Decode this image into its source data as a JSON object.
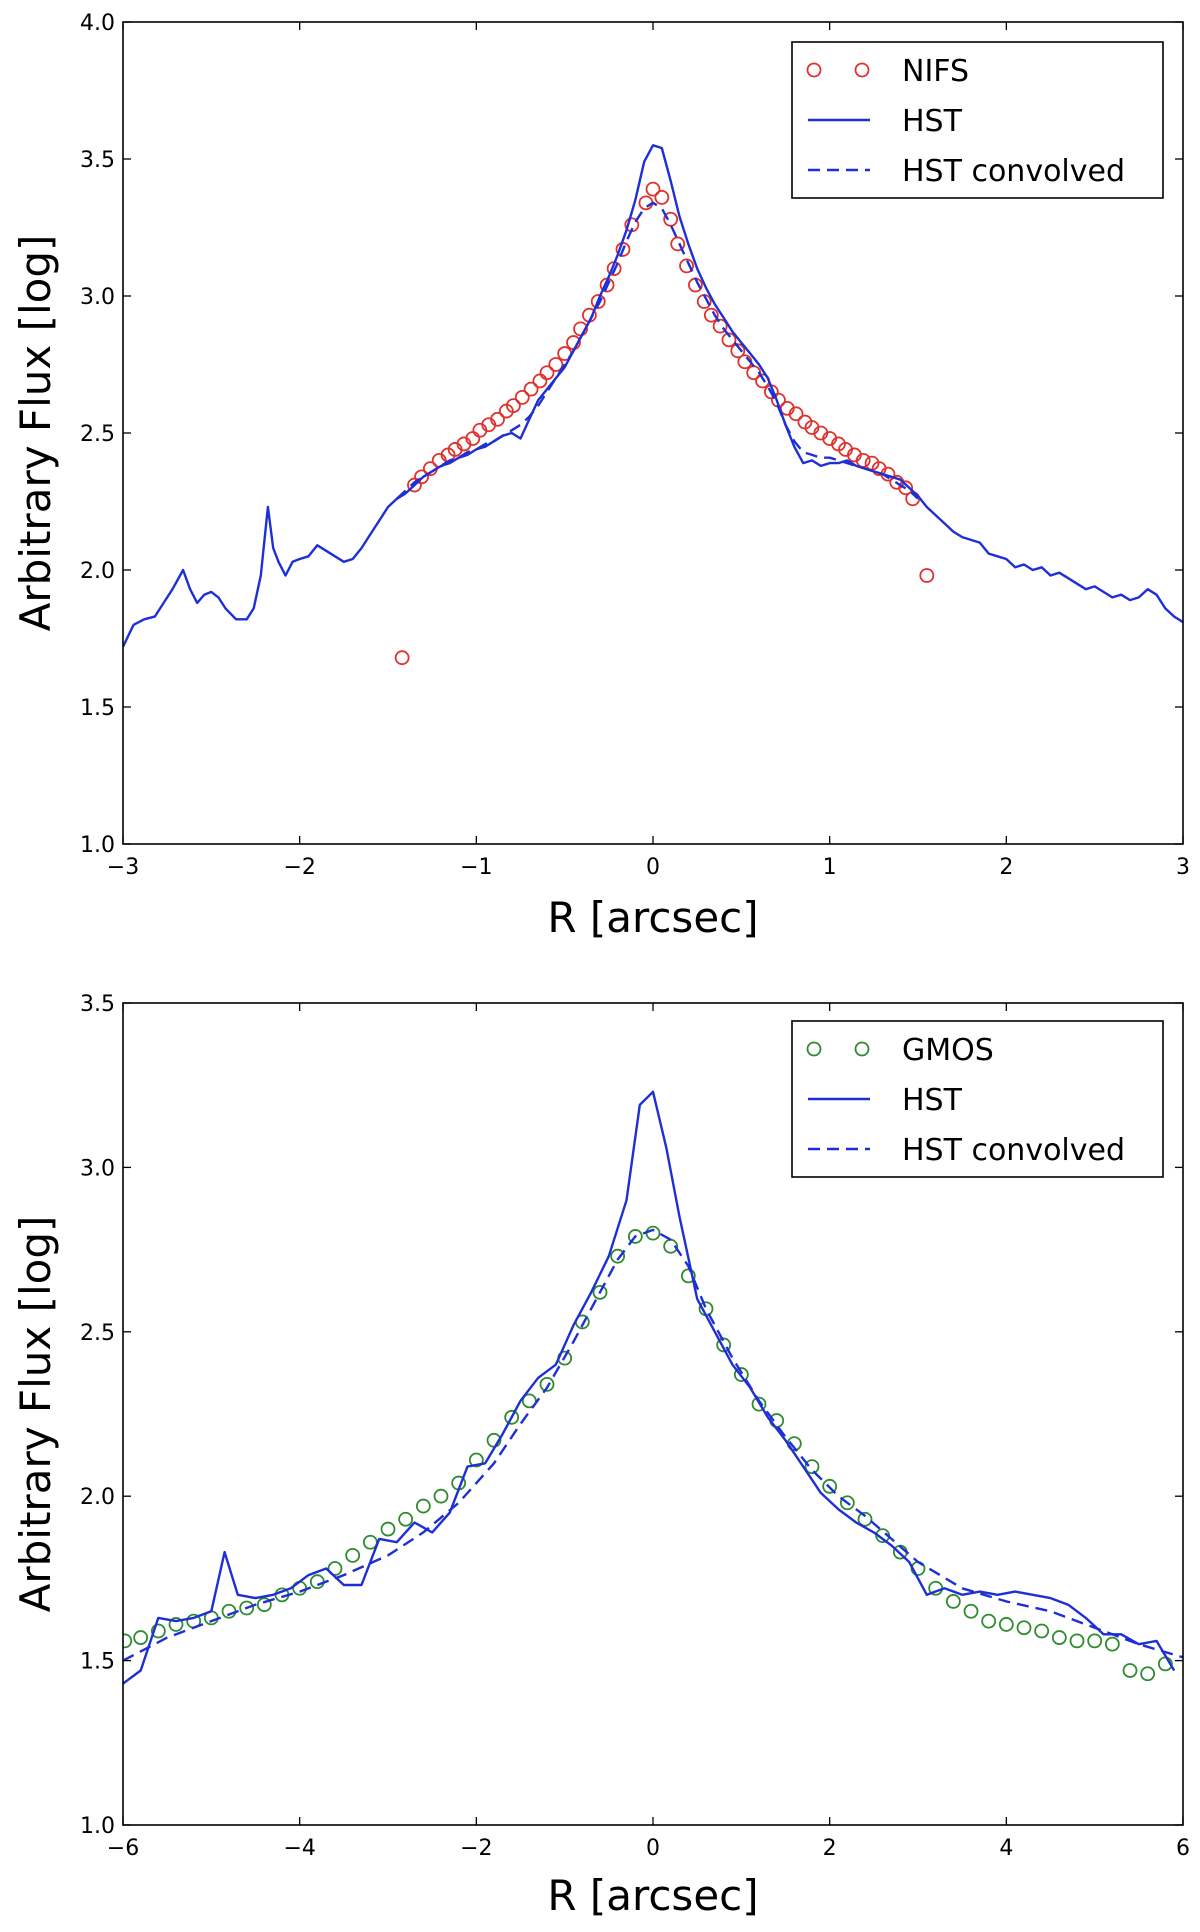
{
  "chart_data": [
    {
      "type": "line",
      "xlabel": "R [arcsec]",
      "ylabel": "Arbitrary Flux [log]",
      "xlim": [
        -3,
        3
      ],
      "ylim": [
        1.0,
        4.0
      ],
      "xticks": [
        -3,
        -2,
        -1,
        0,
        1,
        2,
        3
      ],
      "yticks": [
        1.0,
        1.5,
        2.0,
        2.5,
        3.0,
        3.5,
        4.0
      ],
      "xtick_labels": [
        "−3",
        "−2",
        "−1",
        "0",
        "1",
        "2",
        "3"
      ],
      "ytick_labels": [
        "1.0",
        "1.5",
        "2.0",
        "2.5",
        "3.0",
        "3.5",
        "4.0"
      ],
      "legend": "top-right",
      "series": [
        {
          "name": "NIFS",
          "style": "circles",
          "color": "#e0312c",
          "x": [
            -1.42,
            -1.35,
            -1.31,
            -1.26,
            -1.21,
            -1.16,
            -1.12,
            -1.07,
            -1.02,
            -0.98,
            -0.93,
            -0.88,
            -0.83,
            -0.79,
            -0.74,
            -0.69,
            -0.64,
            -0.6,
            -0.55,
            -0.5,
            -0.45,
            -0.41,
            -0.36,
            -0.31,
            -0.26,
            -0.22,
            -0.17,
            -0.12,
            -0.04,
            0.0,
            0.05,
            0.1,
            0.14,
            0.19,
            0.24,
            0.29,
            0.33,
            0.38,
            0.43,
            0.48,
            0.52,
            0.57,
            0.62,
            0.67,
            0.71,
            0.76,
            0.81,
            0.86,
            0.9,
            0.95,
            1.0,
            1.05,
            1.09,
            1.14,
            1.19,
            1.24,
            1.28,
            1.33,
            1.38,
            1.43,
            1.47,
            1.55
          ],
          "y": [
            1.68,
            2.31,
            2.34,
            2.37,
            2.4,
            2.42,
            2.44,
            2.46,
            2.48,
            2.51,
            2.53,
            2.55,
            2.58,
            2.6,
            2.63,
            2.66,
            2.69,
            2.72,
            2.75,
            2.79,
            2.83,
            2.88,
            2.93,
            2.98,
            3.04,
            3.1,
            3.17,
            3.26,
            3.34,
            3.39,
            3.36,
            3.28,
            3.19,
            3.11,
            3.04,
            2.98,
            2.93,
            2.89,
            2.84,
            2.8,
            2.76,
            2.72,
            2.69,
            2.65,
            2.62,
            2.59,
            2.57,
            2.54,
            2.52,
            2.5,
            2.48,
            2.46,
            2.44,
            2.42,
            2.4,
            2.39,
            2.37,
            2.35,
            2.32,
            2.3,
            2.26,
            1.98
          ]
        },
        {
          "name": "HST",
          "style": "solid",
          "color": "#1f2fd6",
          "x": [
            -3.0,
            -2.94,
            -2.88,
            -2.82,
            -2.76,
            -2.72,
            -2.66,
            -2.62,
            -2.58,
            -2.54,
            -2.5,
            -2.46,
            -2.42,
            -2.36,
            -2.3,
            -2.26,
            -2.22,
            -2.18,
            -2.15,
            -2.12,
            -2.08,
            -2.04,
            -2.0,
            -1.95,
            -1.9,
            -1.85,
            -1.8,
            -1.75,
            -1.7,
            -1.65,
            -1.6,
            -1.55,
            -1.5,
            -1.45,
            -1.4,
            -1.35,
            -1.3,
            -1.25,
            -1.2,
            -1.15,
            -1.1,
            -1.05,
            -1.0,
            -0.95,
            -0.9,
            -0.85,
            -0.8,
            -0.75,
            -0.7,
            -0.65,
            -0.6,
            -0.55,
            -0.5,
            -0.45,
            -0.4,
            -0.35,
            -0.3,
            -0.25,
            -0.2,
            -0.15,
            -0.1,
            -0.05,
            0.0,
            0.05,
            0.1,
            0.15,
            0.2,
            0.25,
            0.3,
            0.35,
            0.4,
            0.45,
            0.5,
            0.55,
            0.6,
            0.65,
            0.7,
            0.75,
            0.8,
            0.85,
            0.9,
            0.95,
            1.0,
            1.05,
            1.1,
            1.15,
            1.2,
            1.25,
            1.3,
            1.35,
            1.4,
            1.45,
            1.5,
            1.55,
            1.6,
            1.65,
            1.7,
            1.75,
            1.8,
            1.85,
            1.9,
            1.95,
            2.0,
            2.05,
            2.1,
            2.15,
            2.2,
            2.25,
            2.3,
            2.35,
            2.4,
            2.45,
            2.5,
            2.55,
            2.6,
            2.65,
            2.7,
            2.75,
            2.8,
            2.85,
            2.9,
            2.95,
            3.0
          ],
          "y": [
            1.72,
            1.8,
            1.82,
            1.83,
            1.89,
            1.93,
            2.0,
            1.93,
            1.88,
            1.91,
            1.92,
            1.9,
            1.86,
            1.82,
            1.82,
            1.86,
            1.98,
            2.23,
            2.08,
            2.03,
            1.98,
            2.03,
            2.04,
            2.05,
            2.09,
            2.07,
            2.05,
            2.03,
            2.04,
            2.08,
            2.13,
            2.18,
            2.23,
            2.26,
            2.28,
            2.31,
            2.34,
            2.36,
            2.38,
            2.39,
            2.41,
            2.42,
            2.44,
            2.45,
            2.47,
            2.49,
            2.5,
            2.48,
            2.55,
            2.62,
            2.66,
            2.7,
            2.74,
            2.8,
            2.86,
            2.92,
            3.0,
            3.07,
            3.15,
            3.24,
            3.35,
            3.49,
            3.55,
            3.54,
            3.42,
            3.29,
            3.19,
            3.1,
            3.03,
            2.97,
            2.92,
            2.87,
            2.83,
            2.79,
            2.75,
            2.7,
            2.62,
            2.53,
            2.45,
            2.39,
            2.4,
            2.38,
            2.39,
            2.39,
            2.4,
            2.38,
            2.37,
            2.36,
            2.35,
            2.34,
            2.33,
            2.3,
            2.27,
            2.23,
            2.2,
            2.17,
            2.14,
            2.12,
            2.11,
            2.1,
            2.06,
            2.05,
            2.04,
            2.01,
            2.02,
            2.0,
            2.01,
            1.98,
            1.99,
            1.97,
            1.95,
            1.93,
            1.94,
            1.92,
            1.9,
            1.91,
            1.89,
            1.9,
            1.93,
            1.91,
            1.86,
            1.83,
            1.81
          ]
        },
        {
          "name": "HST convolved",
          "style": "dashed",
          "color": "#1f2fd6",
          "x": [
            -1.45,
            -1.4,
            -1.35,
            -1.3,
            -1.25,
            -1.2,
            -1.15,
            -1.1,
            -1.05,
            -1.0,
            -0.95,
            -0.9,
            -0.85,
            -0.8,
            -0.75,
            -0.7,
            -0.65,
            -0.6,
            -0.55,
            -0.5,
            -0.45,
            -0.4,
            -0.35,
            -0.3,
            -0.25,
            -0.2,
            -0.15,
            -0.1,
            -0.05,
            0.0,
            0.05,
            0.1,
            0.15,
            0.2,
            0.25,
            0.3,
            0.35,
            0.4,
            0.45,
            0.5,
            0.55,
            0.6,
            0.65,
            0.7,
            0.75,
            0.8,
            0.85,
            0.9,
            0.95,
            1.0,
            1.05,
            1.1,
            1.15,
            1.2,
            1.25,
            1.3,
            1.35,
            1.4,
            1.45,
            1.5
          ],
          "y": [
            2.26,
            2.29,
            2.32,
            2.34,
            2.36,
            2.38,
            2.4,
            2.41,
            2.43,
            2.44,
            2.46,
            2.47,
            2.49,
            2.51,
            2.53,
            2.56,
            2.6,
            2.65,
            2.7,
            2.75,
            2.8,
            2.86,
            2.92,
            2.98,
            3.05,
            3.12,
            3.2,
            3.27,
            3.32,
            3.34,
            3.32,
            3.26,
            3.19,
            3.12,
            3.05,
            2.99,
            2.93,
            2.88,
            2.84,
            2.8,
            2.76,
            2.72,
            2.67,
            2.61,
            2.53,
            2.47,
            2.43,
            2.42,
            2.41,
            2.41,
            2.4,
            2.39,
            2.38,
            2.37,
            2.36,
            2.35,
            2.33,
            2.31,
            2.29,
            2.26
          ]
        }
      ]
    },
    {
      "type": "line",
      "xlabel": "R [arcsec]",
      "ylabel": "Arbitrary Flux [log]",
      "xlim": [
        -6,
        6
      ],
      "ylim": [
        1.0,
        3.5
      ],
      "xticks": [
        -6,
        -4,
        -2,
        0,
        2,
        4,
        6
      ],
      "yticks": [
        1.0,
        1.5,
        2.0,
        2.5,
        3.0,
        3.5
      ],
      "xtick_labels": [
        "−6",
        "−4",
        "−2",
        "0",
        "2",
        "4",
        "6"
      ],
      "ytick_labels": [
        "1.0",
        "1.5",
        "2.0",
        "2.5",
        "3.0",
        "3.5"
      ],
      "legend": "top-right",
      "series": [
        {
          "name": "GMOS",
          "style": "circles",
          "color": "#2e8b2e",
          "x": [
            -5.98,
            -5.8,
            -5.6,
            -5.4,
            -5.2,
            -5.0,
            -4.8,
            -4.6,
            -4.4,
            -4.2,
            -4.0,
            -3.8,
            -3.6,
            -3.4,
            -3.2,
            -3.0,
            -2.8,
            -2.6,
            -2.4,
            -2.2,
            -2.0,
            -1.8,
            -1.6,
            -1.4,
            -1.2,
            -1.0,
            -0.8,
            -0.6,
            -0.4,
            -0.2,
            0.0,
            0.2,
            0.4,
            0.6,
            0.8,
            1.0,
            1.2,
            1.4,
            1.6,
            1.8,
            2.0,
            2.2,
            2.4,
            2.6,
            2.8,
            3.0,
            3.2,
            3.4,
            3.6,
            3.8,
            4.0,
            4.2,
            4.4,
            4.6,
            4.8,
            5.0,
            5.2,
            5.4,
            5.6,
            5.8
          ],
          "y": [
            1.56,
            1.57,
            1.59,
            1.61,
            1.62,
            1.63,
            1.65,
            1.66,
            1.67,
            1.7,
            1.72,
            1.74,
            1.78,
            1.82,
            1.86,
            1.9,
            1.93,
            1.97,
            2.0,
            2.04,
            2.11,
            2.17,
            2.24,
            2.29,
            2.34,
            2.42,
            2.53,
            2.62,
            2.73,
            2.79,
            2.8,
            2.76,
            2.67,
            2.57,
            2.46,
            2.37,
            2.28,
            2.23,
            2.16,
            2.09,
            2.03,
            1.98,
            1.93,
            1.88,
            1.83,
            1.78,
            1.72,
            1.68,
            1.65,
            1.62,
            1.61,
            1.6,
            1.59,
            1.57,
            1.56,
            1.56,
            1.55,
            1.47,
            1.46,
            1.49
          ]
        },
        {
          "name": "HST",
          "style": "solid",
          "color": "#1f2fd6",
          "x": [
            -6.0,
            -5.8,
            -5.6,
            -5.4,
            -5.2,
            -5.0,
            -4.85,
            -4.7,
            -4.5,
            -4.3,
            -4.1,
            -3.9,
            -3.7,
            -3.5,
            -3.3,
            -3.1,
            -2.9,
            -2.7,
            -2.5,
            -2.3,
            -2.1,
            -1.9,
            -1.7,
            -1.5,
            -1.3,
            -1.1,
            -0.9,
            -0.7,
            -0.5,
            -0.3,
            -0.15,
            0.0,
            0.15,
            0.3,
            0.5,
            0.7,
            0.9,
            1.1,
            1.3,
            1.5,
            1.7,
            1.9,
            2.1,
            2.3,
            2.5,
            2.7,
            2.9,
            3.1,
            3.3,
            3.5,
            3.7,
            3.9,
            4.1,
            4.3,
            4.5,
            4.7,
            4.9,
            5.1,
            5.3,
            5.5,
            5.7,
            5.9
          ],
          "y": [
            1.43,
            1.47,
            1.63,
            1.62,
            1.63,
            1.65,
            1.83,
            1.7,
            1.69,
            1.7,
            1.72,
            1.76,
            1.78,
            1.73,
            1.73,
            1.87,
            1.86,
            1.92,
            1.89,
            1.95,
            2.09,
            2.1,
            2.19,
            2.29,
            2.36,
            2.4,
            2.52,
            2.62,
            2.73,
            2.9,
            3.19,
            3.23,
            3.06,
            2.85,
            2.6,
            2.5,
            2.4,
            2.33,
            2.24,
            2.17,
            2.09,
            2.01,
            1.96,
            1.92,
            1.89,
            1.85,
            1.8,
            1.7,
            1.72,
            1.7,
            1.71,
            1.7,
            1.71,
            1.7,
            1.69,
            1.67,
            1.63,
            1.58,
            1.58,
            1.55,
            1.56,
            1.47
          ]
        },
        {
          "name": "HST convolved",
          "style": "dashed",
          "color": "#1f2fd6",
          "x": [
            -6.0,
            -5.5,
            -5.0,
            -4.5,
            -4.0,
            -3.5,
            -3.0,
            -2.6,
            -2.2,
            -1.8,
            -1.5,
            -1.2,
            -0.9,
            -0.6,
            -0.4,
            -0.2,
            0.0,
            0.2,
            0.4,
            0.6,
            0.9,
            1.2,
            1.5,
            1.8,
            2.1,
            2.4,
            2.7,
            3.0,
            3.5,
            4.0,
            4.5,
            5.0,
            5.5,
            6.0
          ],
          "y": [
            1.5,
            1.57,
            1.62,
            1.67,
            1.71,
            1.76,
            1.82,
            1.89,
            1.98,
            2.1,
            2.22,
            2.33,
            2.47,
            2.62,
            2.72,
            2.79,
            2.81,
            2.78,
            2.7,
            2.57,
            2.42,
            2.29,
            2.18,
            2.08,
            2.0,
            1.94,
            1.87,
            1.8,
            1.72,
            1.68,
            1.65,
            1.6,
            1.55,
            1.51
          ]
        }
      ]
    }
  ]
}
